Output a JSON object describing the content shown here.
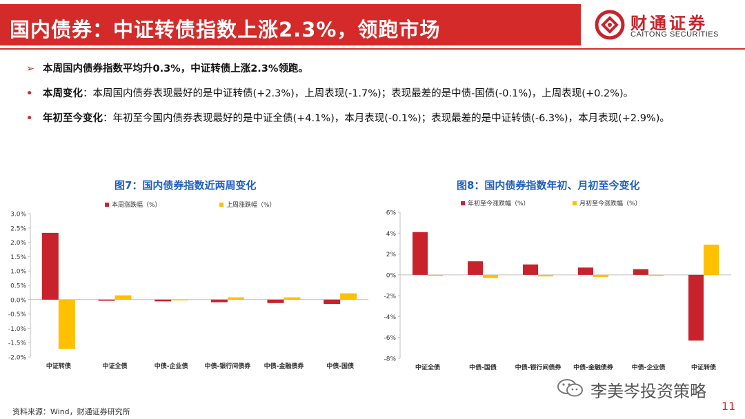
{
  "header": {
    "title": "国内债券：中证转债指数上涨2.3%，领跑市场",
    "logo_cn": "财通证券",
    "logo_en": "CAITONG SECURITIES"
  },
  "bullets": {
    "summary": "本周国内债券指数平均升0.3%，中证转债上涨2.3%领跑。",
    "weekly_label": "本周变化",
    "weekly_text": "：本周国内债券表现最好的是中证转债(+2.3%)，上周表现(-1.7%)；表现最差的是中债-国债(-0.1%)，上周表现(+0.2%)。",
    "ytd_label": "年初至今变化",
    "ytd_text": "：年初至今国内债券表现最好的是中证全债(+4.1%)，本月表现(-0.1%)；表现最差的是中证转债(-6.3%)，本月表现(+2.9%)。"
  },
  "colors": {
    "red": "#c8232c",
    "yellow": "#ffc000",
    "brand": "#d42a2a",
    "title_blue": "#1f5fbf"
  },
  "chart_data": [
    {
      "type": "bar",
      "title": "图7：国内债券指数近两周变化",
      "categories": [
        "中证转债",
        "中证全债",
        "中债-企业债",
        "中债-银行间债券",
        "中债-金融债券",
        "中债-国债"
      ],
      "series": [
        {
          "name": "本周涨跌幅（%）",
          "values": [
            2.33,
            -0.04,
            -0.06,
            -0.09,
            -0.12,
            -0.15
          ]
        },
        {
          "name": "上周涨跌幅（%）",
          "values": [
            -1.72,
            0.15,
            -0.02,
            0.08,
            0.08,
            0.22
          ]
        }
      ],
      "ylim": [
        -2.0,
        3.0
      ],
      "yticks": [
        "3.0%",
        "2.5%",
        "2.0%",
        "1.5%",
        "1.0%",
        "0.5%",
        "0.0%",
        "-0.5%",
        "-1.0%",
        "-1.5%",
        "-2.0%"
      ],
      "legend": "top",
      "grid": false
    },
    {
      "type": "bar",
      "title": "图8：国内债券指数年初、月初至今变化",
      "categories": [
        "中证全债",
        "中债-国债",
        "中债-银行间债券",
        "中债-金融债券",
        "中债-企业债",
        "中证转债"
      ],
      "series": [
        {
          "name": "年初至今涨跌幅（%）",
          "values": [
            4.1,
            1.3,
            1.0,
            0.7,
            0.55,
            -6.3
          ]
        },
        {
          "name": "月初至今涨跌幅（%）",
          "values": [
            -0.1,
            -0.3,
            -0.15,
            -0.2,
            -0.1,
            2.9
          ]
        }
      ],
      "ylim": [
        -8,
        6
      ],
      "yticks": [
        "6%",
        "4%",
        "2%",
        "0%",
        "-2%",
        "-4%",
        "-6%",
        "-8%"
      ],
      "legend": "top",
      "grid": false
    }
  ],
  "footer": {
    "source": "资料来源：Wind，财通证券研究所",
    "page": "11",
    "watermark": "李美岑投资策略"
  }
}
